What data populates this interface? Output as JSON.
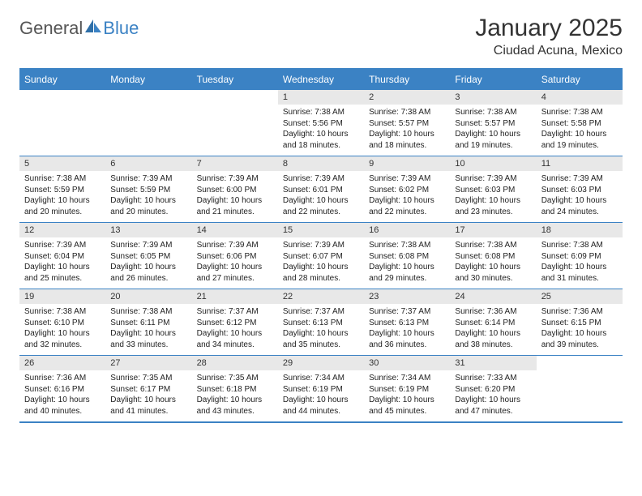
{
  "logo": {
    "text1": "General",
    "text2": "Blue"
  },
  "title": "January 2025",
  "location": "Ciudad Acuna, Mexico",
  "colors": {
    "header_bg": "#3b82c4",
    "header_text": "#ffffff",
    "daynum_bg": "#e8e8e8",
    "border": "#3b82c4",
    "page_bg": "#ffffff",
    "text": "#222222"
  },
  "weekdays": [
    "Sunday",
    "Monday",
    "Tuesday",
    "Wednesday",
    "Thursday",
    "Friday",
    "Saturday"
  ],
  "cells": [
    {
      "n": "",
      "s": "",
      "ss": "",
      "d1": "",
      "d2": ""
    },
    {
      "n": "",
      "s": "",
      "ss": "",
      "d1": "",
      "d2": ""
    },
    {
      "n": "",
      "s": "",
      "ss": "",
      "d1": "",
      "d2": ""
    },
    {
      "n": "1",
      "s": "Sunrise: 7:38 AM",
      "ss": "Sunset: 5:56 PM",
      "d1": "Daylight: 10 hours",
      "d2": "and 18 minutes."
    },
    {
      "n": "2",
      "s": "Sunrise: 7:38 AM",
      "ss": "Sunset: 5:57 PM",
      "d1": "Daylight: 10 hours",
      "d2": "and 18 minutes."
    },
    {
      "n": "3",
      "s": "Sunrise: 7:38 AM",
      "ss": "Sunset: 5:57 PM",
      "d1": "Daylight: 10 hours",
      "d2": "and 19 minutes."
    },
    {
      "n": "4",
      "s": "Sunrise: 7:38 AM",
      "ss": "Sunset: 5:58 PM",
      "d1": "Daylight: 10 hours",
      "d2": "and 19 minutes."
    },
    {
      "n": "5",
      "s": "Sunrise: 7:38 AM",
      "ss": "Sunset: 5:59 PM",
      "d1": "Daylight: 10 hours",
      "d2": "and 20 minutes."
    },
    {
      "n": "6",
      "s": "Sunrise: 7:39 AM",
      "ss": "Sunset: 5:59 PM",
      "d1": "Daylight: 10 hours",
      "d2": "and 20 minutes."
    },
    {
      "n": "7",
      "s": "Sunrise: 7:39 AM",
      "ss": "Sunset: 6:00 PM",
      "d1": "Daylight: 10 hours",
      "d2": "and 21 minutes."
    },
    {
      "n": "8",
      "s": "Sunrise: 7:39 AM",
      "ss": "Sunset: 6:01 PM",
      "d1": "Daylight: 10 hours",
      "d2": "and 22 minutes."
    },
    {
      "n": "9",
      "s": "Sunrise: 7:39 AM",
      "ss": "Sunset: 6:02 PM",
      "d1": "Daylight: 10 hours",
      "d2": "and 22 minutes."
    },
    {
      "n": "10",
      "s": "Sunrise: 7:39 AM",
      "ss": "Sunset: 6:03 PM",
      "d1": "Daylight: 10 hours",
      "d2": "and 23 minutes."
    },
    {
      "n": "11",
      "s": "Sunrise: 7:39 AM",
      "ss": "Sunset: 6:03 PM",
      "d1": "Daylight: 10 hours",
      "d2": "and 24 minutes."
    },
    {
      "n": "12",
      "s": "Sunrise: 7:39 AM",
      "ss": "Sunset: 6:04 PM",
      "d1": "Daylight: 10 hours",
      "d2": "and 25 minutes."
    },
    {
      "n": "13",
      "s": "Sunrise: 7:39 AM",
      "ss": "Sunset: 6:05 PM",
      "d1": "Daylight: 10 hours",
      "d2": "and 26 minutes."
    },
    {
      "n": "14",
      "s": "Sunrise: 7:39 AM",
      "ss": "Sunset: 6:06 PM",
      "d1": "Daylight: 10 hours",
      "d2": "and 27 minutes."
    },
    {
      "n": "15",
      "s": "Sunrise: 7:39 AM",
      "ss": "Sunset: 6:07 PM",
      "d1": "Daylight: 10 hours",
      "d2": "and 28 minutes."
    },
    {
      "n": "16",
      "s": "Sunrise: 7:38 AM",
      "ss": "Sunset: 6:08 PM",
      "d1": "Daylight: 10 hours",
      "d2": "and 29 minutes."
    },
    {
      "n": "17",
      "s": "Sunrise: 7:38 AM",
      "ss": "Sunset: 6:08 PM",
      "d1": "Daylight: 10 hours",
      "d2": "and 30 minutes."
    },
    {
      "n": "18",
      "s": "Sunrise: 7:38 AM",
      "ss": "Sunset: 6:09 PM",
      "d1": "Daylight: 10 hours",
      "d2": "and 31 minutes."
    },
    {
      "n": "19",
      "s": "Sunrise: 7:38 AM",
      "ss": "Sunset: 6:10 PM",
      "d1": "Daylight: 10 hours",
      "d2": "and 32 minutes."
    },
    {
      "n": "20",
      "s": "Sunrise: 7:38 AM",
      "ss": "Sunset: 6:11 PM",
      "d1": "Daylight: 10 hours",
      "d2": "and 33 minutes."
    },
    {
      "n": "21",
      "s": "Sunrise: 7:37 AM",
      "ss": "Sunset: 6:12 PM",
      "d1": "Daylight: 10 hours",
      "d2": "and 34 minutes."
    },
    {
      "n": "22",
      "s": "Sunrise: 7:37 AM",
      "ss": "Sunset: 6:13 PM",
      "d1": "Daylight: 10 hours",
      "d2": "and 35 minutes."
    },
    {
      "n": "23",
      "s": "Sunrise: 7:37 AM",
      "ss": "Sunset: 6:13 PM",
      "d1": "Daylight: 10 hours",
      "d2": "and 36 minutes."
    },
    {
      "n": "24",
      "s": "Sunrise: 7:36 AM",
      "ss": "Sunset: 6:14 PM",
      "d1": "Daylight: 10 hours",
      "d2": "and 38 minutes."
    },
    {
      "n": "25",
      "s": "Sunrise: 7:36 AM",
      "ss": "Sunset: 6:15 PM",
      "d1": "Daylight: 10 hours",
      "d2": "and 39 minutes."
    },
    {
      "n": "26",
      "s": "Sunrise: 7:36 AM",
      "ss": "Sunset: 6:16 PM",
      "d1": "Daylight: 10 hours",
      "d2": "and 40 minutes."
    },
    {
      "n": "27",
      "s": "Sunrise: 7:35 AM",
      "ss": "Sunset: 6:17 PM",
      "d1": "Daylight: 10 hours",
      "d2": "and 41 minutes."
    },
    {
      "n": "28",
      "s": "Sunrise: 7:35 AM",
      "ss": "Sunset: 6:18 PM",
      "d1": "Daylight: 10 hours",
      "d2": "and 43 minutes."
    },
    {
      "n": "29",
      "s": "Sunrise: 7:34 AM",
      "ss": "Sunset: 6:19 PM",
      "d1": "Daylight: 10 hours",
      "d2": "and 44 minutes."
    },
    {
      "n": "30",
      "s": "Sunrise: 7:34 AM",
      "ss": "Sunset: 6:19 PM",
      "d1": "Daylight: 10 hours",
      "d2": "and 45 minutes."
    },
    {
      "n": "31",
      "s": "Sunrise: 7:33 AM",
      "ss": "Sunset: 6:20 PM",
      "d1": "Daylight: 10 hours",
      "d2": "and 47 minutes."
    },
    {
      "n": "",
      "s": "",
      "ss": "",
      "d1": "",
      "d2": ""
    }
  ]
}
